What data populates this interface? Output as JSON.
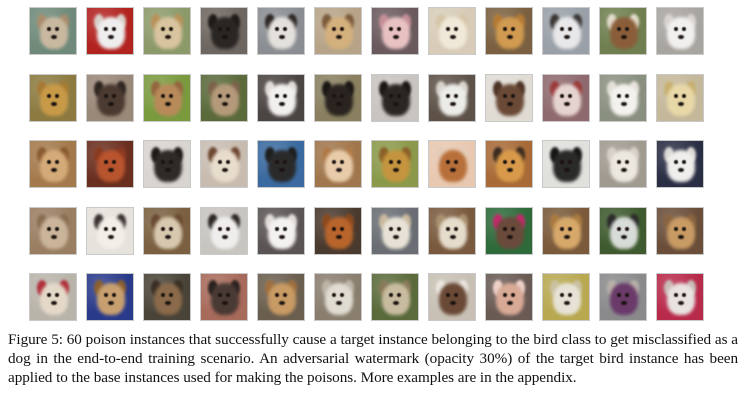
{
  "figure": {
    "rows": 5,
    "columns": 12,
    "tiles": [
      {
        "bg": "#6f8a7a",
        "fur": "#c9b8a0",
        "ear": "#a88c6c",
        "label": "poison instance"
      },
      {
        "bg": "#b2221f",
        "fur": "#eeeeee",
        "ear": "#d8d0c8",
        "label": "poison instance"
      },
      {
        "bg": "#8c9a6a",
        "fur": "#d8c49e",
        "ear": "#b8925a",
        "label": "poison instance"
      },
      {
        "bg": "#6e6660",
        "fur": "#2a2624",
        "ear": "#1e1a18",
        "label": "poison instance"
      },
      {
        "bg": "#8a8e92",
        "fur": "#e4e0dc",
        "ear": "#2c2624",
        "label": "poison instance"
      },
      {
        "bg": "#b7a488",
        "fur": "#d4b07c",
        "ear": "#7a5a3a",
        "label": "poison instance"
      },
      {
        "bg": "#6a5a5e",
        "fur": "#e8c2c2",
        "ear": "#c48e96",
        "label": "poison instance"
      },
      {
        "bg": "#d8ccb8",
        "fur": "#f0e8d8",
        "ear": "#d6c6a8",
        "label": "poison instance"
      },
      {
        "bg": "#7a6040",
        "fur": "#d09a50",
        "ear": "#b47a34",
        "label": "poison instance"
      },
      {
        "bg": "#9aa0a8",
        "fur": "#e8e8ea",
        "ear": "#3a3634",
        "label": "poison instance"
      },
      {
        "bg": "#6f7f4f",
        "fur": "#8a5e3a",
        "ear": "#e4dccc",
        "label": "poison instance"
      },
      {
        "bg": "#a8a4a0",
        "fur": "#f2f0ee",
        "ear": "#d8d4d0",
        "label": "poison instance"
      },
      {
        "bg": "#8c7a40",
        "fur": "#c89a48",
        "ear": "#a67a34",
        "label": "poison instance"
      },
      {
        "bg": "#9a8878",
        "fur": "#4a3a30",
        "ear": "#2e2420",
        "label": "poison instance"
      },
      {
        "bg": "#7a9a3e",
        "fur": "#b88a5a",
        "ear": "#946640",
        "label": "poison instance"
      },
      {
        "bg": "#5a6a3a",
        "fur": "#b49a7a",
        "ear": "#7c624a",
        "label": "poison instance"
      },
      {
        "bg": "#4a4442",
        "fur": "#f2f0ee",
        "ear": "#e0dcd8",
        "label": "poison instance"
      },
      {
        "bg": "#8a8060",
        "fur": "#2a2420",
        "ear": "#1a1614",
        "label": "poison instance"
      },
      {
        "bg": "#c8c4c0",
        "fur": "#2a2624",
        "ear": "#1a1614",
        "label": "poison instance"
      },
      {
        "bg": "#5e5248",
        "fur": "#ecece8",
        "ear": "#d8d4cc",
        "label": "poison instance"
      },
      {
        "bg": "#e0dcd4",
        "fur": "#6a4a36",
        "ear": "#4a3224",
        "label": "poison instance"
      },
      {
        "bg": "#8e6a6e",
        "fur": "#e6d4d0",
        "ear": "#9a3a3a",
        "label": "poison instance"
      },
      {
        "bg": "#8a9080",
        "fur": "#f4f2ee",
        "ear": "#e4e0da",
        "label": "poison instance"
      },
      {
        "bg": "#c4b89a",
        "fur": "#e8d8a8",
        "ear": "#c8b070",
        "label": "poison instance"
      },
      {
        "bg": "#a47a4c",
        "fur": "#d4aa78",
        "ear": "#8a5a30",
        "label": "poison instance"
      },
      {
        "bg": "#6a2e1e",
        "fur": "#b8542e",
        "ear": "#8a3a20",
        "label": "poison instance"
      },
      {
        "bg": "#d8d4d0",
        "fur": "#2e2a28",
        "ear": "#1e1a18",
        "label": "poison instance"
      },
      {
        "bg": "#c8bcb0",
        "fur": "#e8dccc",
        "ear": "#6e4630",
        "label": "poison instance"
      },
      {
        "bg": "#3a6aa0",
        "fur": "#2a2a2a",
        "ear": "#1e1e1e",
        "label": "poison instance"
      },
      {
        "bg": "#a0764c",
        "fur": "#e8ccaa",
        "ear": "#b07a48",
        "label": "poison instance"
      },
      {
        "bg": "#8a9a4a",
        "fur": "#c4943e",
        "ear": "#8a6028",
        "label": "poison instance"
      },
      {
        "bg": "#e8c8b0",
        "fur": "#b8703a",
        "ear": "#e4ccb8",
        "label": "poison instance"
      },
      {
        "bg": "#a86a36",
        "fur": "#d89a4a",
        "ear": "#3a2a20",
        "label": "poison instance"
      },
      {
        "bg": "#e0e0dc",
        "fur": "#2a2a28",
        "ear": "#161616",
        "label": "poison instance"
      },
      {
        "bg": "#a09a90",
        "fur": "#ece8e0",
        "ear": "#d6d0c6",
        "label": "poison instance"
      },
      {
        "bg": "#2a2e44",
        "fur": "#f0eeec",
        "ear": "#dedad6",
        "label": "poison instance"
      },
      {
        "bg": "#9a7e62",
        "fur": "#cab49a",
        "ear": "#8a6e52",
        "label": "poison instance"
      },
      {
        "bg": "#e6e2dc",
        "fur": "#f2eee8",
        "ear": "#3a3030",
        "label": "poison instance"
      },
      {
        "bg": "#7a6040",
        "fur": "#d8c8b0",
        "ear": "#6a4a30",
        "label": "poison instance"
      },
      {
        "bg": "#c8c4c0",
        "fur": "#f0eeec",
        "ear": "#2a2624",
        "label": "poison instance"
      },
      {
        "bg": "#5a5454",
        "fur": "#f4f2f0",
        "ear": "#e0dcd8",
        "label": "poison instance"
      },
      {
        "bg": "#4a3a2e",
        "fur": "#b8642a",
        "ear": "#8a4a1e",
        "label": "poison instance"
      },
      {
        "bg": "#6a6e74",
        "fur": "#e8e2d6",
        "ear": "#c8b89e",
        "label": "poison instance"
      },
      {
        "bg": "#7a5a3e",
        "fur": "#e6dccc",
        "ear": "#a8906e",
        "label": "poison instance"
      },
      {
        "bg": "#2e6a3a",
        "fur": "#6a4a3a",
        "ear": "#c02a6a",
        "label": "poison instance"
      },
      {
        "bg": "#7a5a3a",
        "fur": "#d6a86a",
        "ear": "#a87a40",
        "label": "poison instance"
      },
      {
        "bg": "#3e5a2e",
        "fur": "#d8dcd8",
        "ear": "#2a2a2a",
        "label": "poison instance"
      },
      {
        "bg": "#6a4e3a",
        "fur": "#c89a64",
        "ear": "#8a6440",
        "label": "poison instance"
      },
      {
        "bg": "#b8b4aa",
        "fur": "#e4d8c8",
        "ear": "#b0303a",
        "label": "poison instance"
      },
      {
        "bg": "#2a3a8a",
        "fur": "#c8a070",
        "ear": "#8a6030",
        "label": "poison instance"
      },
      {
        "bg": "#4a4438",
        "fur": "#8a6a4a",
        "ear": "#3a2e24",
        "label": "poison instance"
      },
      {
        "bg": "#a86a5a",
        "fur": "#4a3a34",
        "ear": "#2a2220",
        "label": "poison instance"
      },
      {
        "bg": "#6a5e4e",
        "fur": "#c89a64",
        "ear": "#a07040",
        "label": "poison instance"
      },
      {
        "bg": "#8a7e6e",
        "fur": "#e0dcd2",
        "ear": "#bcb4a6",
        "label": "poison instance"
      },
      {
        "bg": "#5a6a3a",
        "fur": "#c8bca0",
        "ear": "#8a7a5a",
        "label": "poison instance"
      },
      {
        "bg": "#c8c0b4",
        "fur": "#6a4a36",
        "ear": "#eae6e0",
        "label": "poison instance"
      },
      {
        "bg": "#6a5a54",
        "fur": "#d8aa96",
        "ear": "#f0d4cc",
        "label": "poison instance"
      },
      {
        "bg": "#b8a850",
        "fur": "#e6e2d6",
        "ear": "#c8c0a0",
        "label": "poison instance"
      },
      {
        "bg": "#8a8a8c",
        "fur": "#6a3a6a",
        "ear": "#b8b0a8",
        "label": "poison instance"
      },
      {
        "bg": "#b82a4a",
        "fur": "#e8e2e0",
        "ear": "#c8bcb6",
        "label": "poison instance"
      }
    ]
  },
  "caption": {
    "text": "Figure 5: 60 poison instances that successfully cause a target instance belonging to the bird class to get misclassified as a dog in the end-to-end training scenario. An adversarial watermark (opacity 30%) of the target bird instance has been applied to the base instances used for making the poisons. More examples are in the appendix."
  }
}
